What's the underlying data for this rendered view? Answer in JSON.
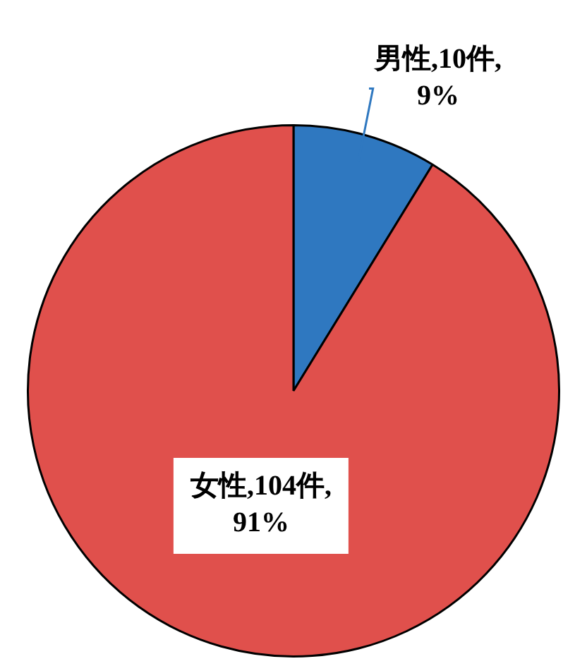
{
  "chart_data": {
    "type": "pie",
    "categories": [
      "男性",
      "女性"
    ],
    "values": [
      10,
      104
    ],
    "colors": [
      "#2f78c0",
      "#e0504c"
    ],
    "value_labels": [
      "10件,9%",
      "104件,91%"
    ]
  }
}
